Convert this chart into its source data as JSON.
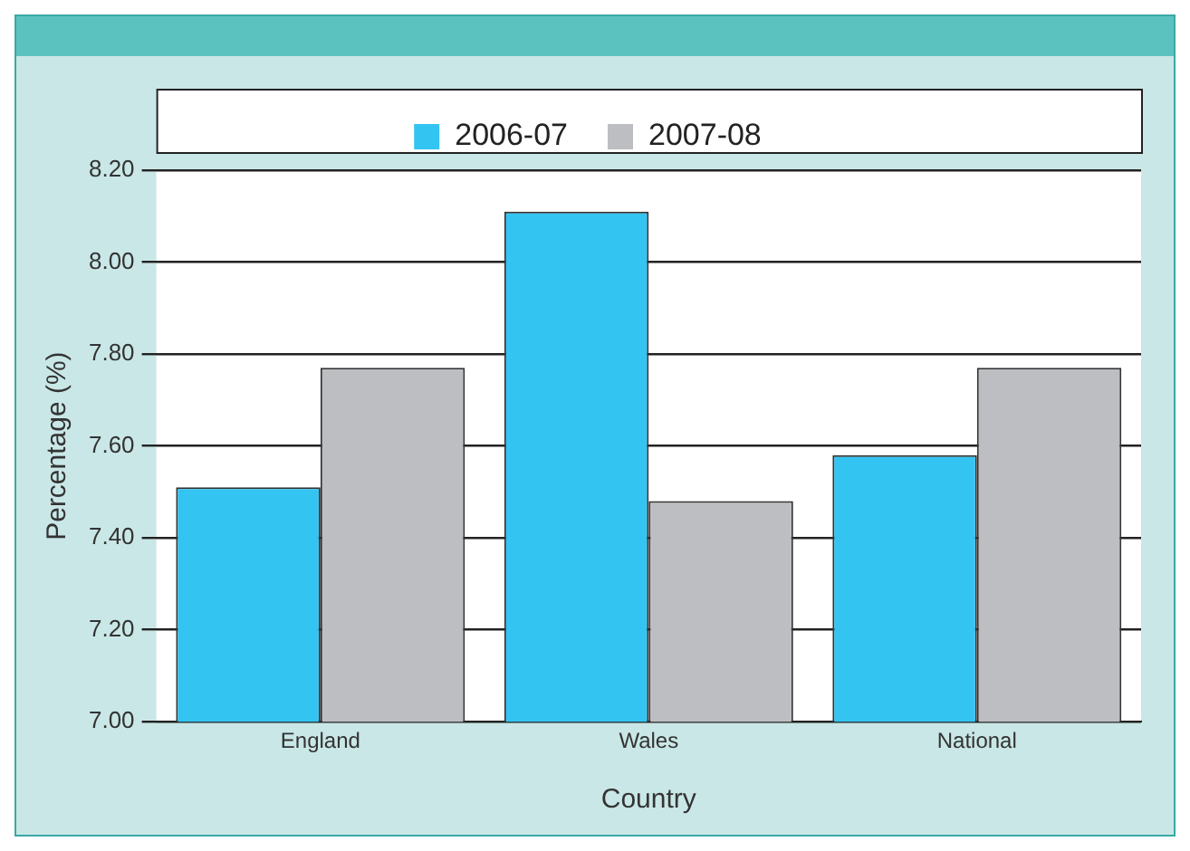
{
  "chart_data": {
    "type": "bar",
    "xlabel": "Country",
    "ylabel": "Percentage (%)",
    "categories": [
      "England",
      "Wales",
      "National"
    ],
    "series": [
      {
        "name": "2006-07",
        "color": "#33c4f2",
        "values": [
          7.51,
          8.11,
          7.58
        ]
      },
      {
        "name": "2007-08",
        "color": "#bdbec2",
        "values": [
          7.77,
          7.48,
          7.77
        ]
      }
    ],
    "ylim": [
      7.0,
      8.2
    ],
    "yticks": [
      {
        "value": 7.0,
        "label": "7.00"
      },
      {
        "value": 7.2,
        "label": "7.20"
      },
      {
        "value": 7.4,
        "label": "7.40"
      },
      {
        "value": 7.6,
        "label": "7.60"
      },
      {
        "value": 7.8,
        "label": "7.80"
      },
      {
        "value": 8.0,
        "label": "8.00"
      },
      {
        "value": 8.2,
        "label": "8.20"
      }
    ],
    "grid": "y",
    "legend": "top"
  }
}
